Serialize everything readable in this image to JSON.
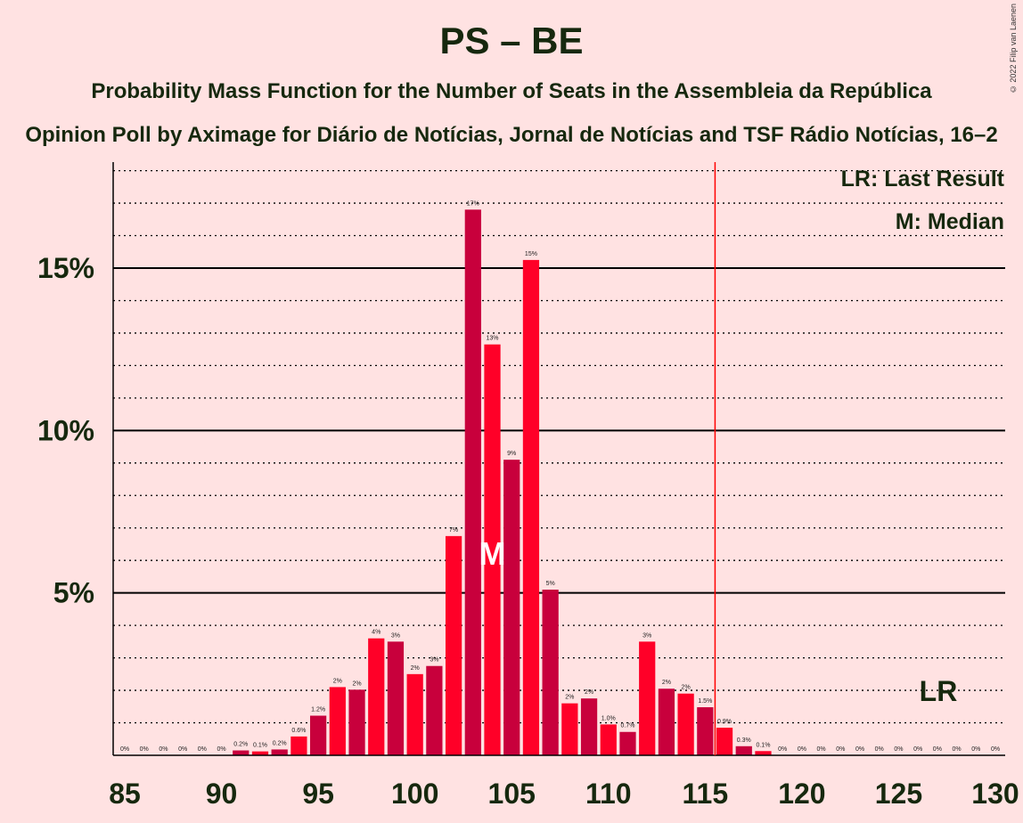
{
  "title": "PS – BE",
  "subtitle": "Probability Mass Function for the Number of Seats in the Assembleia da República",
  "subtitle2": "Opinion Poll by Aximage for Diário de Notícias, Jornal de Notícias and TSF Rádio Notícias, 16–2",
  "copyright": "© 2022 Filip van Laenen",
  "legend": {
    "last_result": "LR: Last Result",
    "median": "M: Median"
  },
  "colors": {
    "background": "#FFE2E2",
    "bar_a": "#C8003C",
    "bar_b": "#FF0028",
    "lr_line": "#FF0000",
    "text": "#16280e"
  },
  "chart_data": {
    "type": "bar",
    "x": [
      85,
      86,
      87,
      88,
      89,
      90,
      91,
      92,
      93,
      94,
      95,
      96,
      97,
      98,
      99,
      100,
      101,
      102,
      103,
      104,
      105,
      106,
      107,
      108,
      109,
      110,
      111,
      112,
      113,
      114,
      115,
      116,
      117,
      118,
      119,
      120,
      121,
      122,
      123,
      124,
      125,
      126,
      127,
      128,
      129,
      130
    ],
    "values": [
      0,
      0,
      0,
      0,
      0,
      0,
      0.15,
      0.12,
      0.18,
      0.58,
      1.22,
      2.1,
      2.02,
      3.6,
      3.5,
      2.5,
      2.75,
      6.75,
      16.8,
      12.65,
      9.1,
      15.25,
      5.1,
      1.6,
      1.75,
      0.95,
      0.72,
      3.5,
      2.05,
      1.9,
      1.48,
      0.85,
      0.28,
      0.13,
      0,
      0,
      0,
      0,
      0,
      0,
      0,
      0,
      0,
      0,
      0,
      0
    ],
    "labels": [
      "0%",
      "0%",
      "0%",
      "0%",
      "0%",
      "0%",
      "0.2%",
      "0.1%",
      "0.2%",
      "0.6%",
      "1.2%",
      "2%",
      "2%",
      "4%",
      "3%",
      "2%",
      "3%",
      "7%",
      "17%",
      "13%",
      "9%",
      "15%",
      "5%",
      "2%",
      "2%",
      "1.0%",
      "0.7%",
      "3%",
      "2%",
      "2%",
      "1.5%",
      "0.9%",
      "0.3%",
      "0.1%",
      "0%",
      "0%",
      "0%",
      "0%",
      "0%",
      "0%",
      "0%",
      "0%",
      "0%",
      "0%",
      "0%",
      "0%"
    ],
    "median": 104,
    "median_label": "M",
    "last_result": 116,
    "last_result_label": "LR",
    "x_ticks": [
      85,
      90,
      95,
      100,
      105,
      110,
      115,
      120,
      125,
      130
    ],
    "x_tick_labels": [
      "85",
      "90",
      "95",
      "100",
      "105",
      "110",
      "115",
      "120",
      "125",
      "130"
    ],
    "y_ticks": [
      5,
      10,
      15
    ],
    "y_tick_labels": [
      "5%",
      "10%",
      "15%"
    ],
    "ylim": [
      0,
      18.3
    ],
    "grid": true
  }
}
